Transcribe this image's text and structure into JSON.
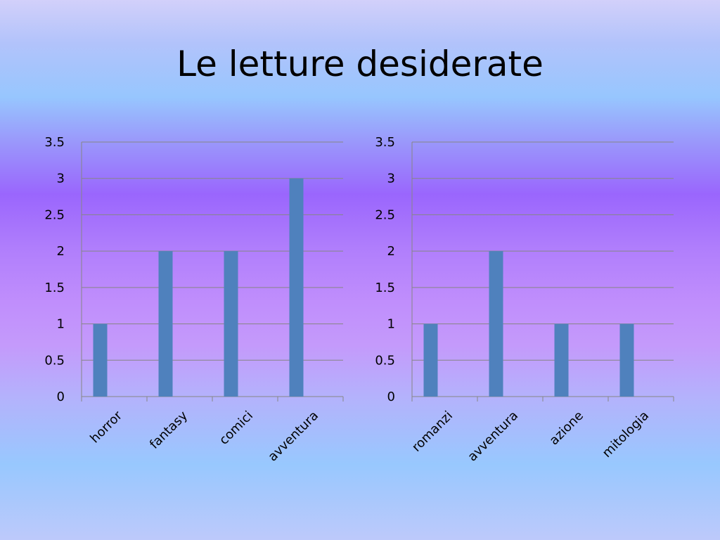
{
  "slide": {
    "title": "Le letture desiderate"
  },
  "chart_data": [
    {
      "type": "bar",
      "categories": [
        "horror",
        "fantasy",
        "comici",
        "avventura"
      ],
      "values": [
        1,
        2,
        2,
        3
      ],
      "ylim": [
        0,
        3.5
      ],
      "yticks": [
        "0",
        "0.5",
        "1",
        "1.5",
        "2",
        "2.5",
        "3",
        "3.5"
      ],
      "grid": true,
      "legend": "none",
      "bar_color": "#4f81bd"
    },
    {
      "type": "bar",
      "categories": [
        "romanzi",
        "avventura",
        "azione",
        "mitologia"
      ],
      "values": [
        1,
        2,
        1,
        1
      ],
      "ylim": [
        0,
        3.5
      ],
      "yticks": [
        "0",
        "0.5",
        "1",
        "1.5",
        "2",
        "2.5",
        "3",
        "3.5"
      ],
      "grid": true,
      "legend": "none",
      "bar_color": "#4f81bd"
    }
  ]
}
